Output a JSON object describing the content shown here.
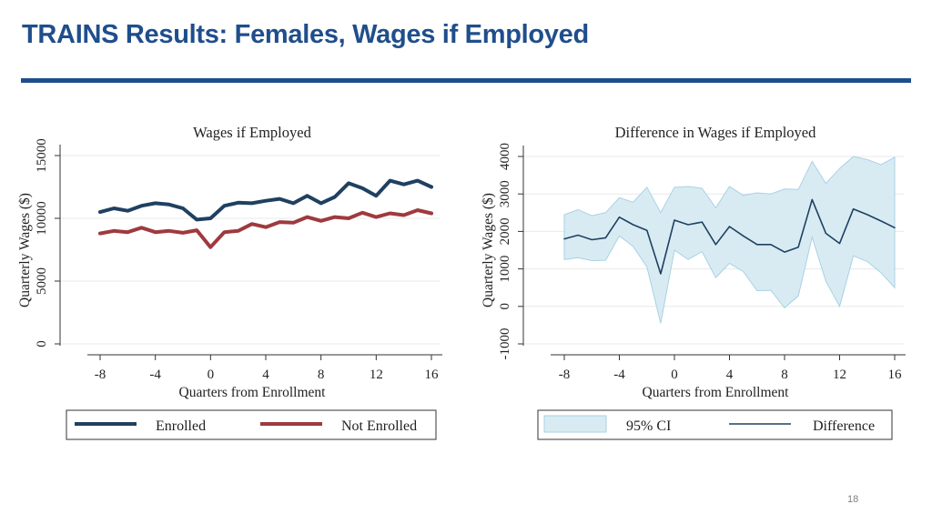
{
  "slide": {
    "title": "TRAINS Results: Females, Wages if Employed",
    "page_number": "18"
  },
  "colors": {
    "title": "#1f4e8c",
    "enrolled": "#1f4060",
    "not_enrolled": "#9e3a3f",
    "ci_fill": "#d8ebf3",
    "ci_stroke": "#a9d1e3",
    "difference": "#1f4060",
    "grid": "#e8e8e8"
  },
  "chart_data": [
    {
      "type": "line",
      "title": "Wages if Employed",
      "xlabel": "Quarters from Enrollment",
      "ylabel": "Quarterly Wages ($)",
      "xlim": [
        -8,
        16
      ],
      "ylim": [
        0,
        15000
      ],
      "xticks": [
        -8,
        -4,
        0,
        4,
        8,
        12,
        16
      ],
      "yticks": [
        0,
        5000,
        10000,
        15000
      ],
      "grid": true,
      "legend_position": "bottom",
      "x": [
        -8,
        -7,
        -6,
        -5,
        -4,
        -3,
        -2,
        -1,
        0,
        1,
        2,
        3,
        4,
        5,
        6,
        7,
        8,
        9,
        10,
        11,
        12,
        13,
        14,
        15,
        16
      ],
      "series": [
        {
          "name": "Enrolled",
          "values": [
            10500,
            10800,
            10600,
            11000,
            11200,
            11100,
            10800,
            9900,
            10000,
            11000,
            11250,
            11200,
            11400,
            11550,
            11200,
            11800,
            11200,
            11700,
            12800,
            12400,
            11800,
            13000,
            12700,
            13000,
            12500
          ]
        },
        {
          "name": "Not Enrolled",
          "values": [
            8800,
            9000,
            8900,
            9250,
            8900,
            9000,
            8850,
            9050,
            7700,
            8900,
            9000,
            9550,
            9300,
            9700,
            9650,
            10100,
            9800,
            10100,
            10000,
            10450,
            10100,
            10400,
            10250,
            10650,
            10400
          ]
        }
      ]
    },
    {
      "type": "area",
      "title": "Difference in Wages if Employed",
      "xlabel": "Quarters from Enrollment",
      "ylabel": "Quarterly Wages ($)",
      "xlim": [
        -8,
        16
      ],
      "ylim": [
        -1000,
        4000
      ],
      "xticks": [
        -8,
        -4,
        0,
        4,
        8,
        12,
        16
      ],
      "yticks": [
        -1000,
        0,
        1000,
        2000,
        3000,
        4000
      ],
      "grid": true,
      "legend_position": "bottom",
      "x": [
        -8,
        -7,
        -6,
        -5,
        -4,
        -3,
        -2,
        -1,
        0,
        1,
        2,
        3,
        4,
        5,
        6,
        7,
        8,
        9,
        10,
        11,
        12,
        13,
        14,
        15,
        16
      ],
      "series": [
        {
          "name": "Difference",
          "values": [
            1800,
            1900,
            1780,
            1830,
            2380,
            2180,
            2030,
            870,
            2300,
            2180,
            2250,
            1650,
            2130,
            1880,
            1650,
            1650,
            1450,
            1580,
            2850,
            1950,
            1680,
            2600,
            2450,
            2280,
            2100
          ]
        }
      ],
      "ci": {
        "name": "95% CI",
        "lower": [
          1250,
          1300,
          1220,
          1230,
          1880,
          1600,
          1050,
          -450,
          1500,
          1250,
          1460,
          770,
          1150,
          930,
          420,
          430,
          -40,
          280,
          1850,
          670,
          0,
          1350,
          1200,
          900,
          500
        ],
        "upper": [
          2450,
          2580,
          2420,
          2500,
          2900,
          2780,
          3180,
          2500,
          3180,
          3200,
          3150,
          2630,
          3200,
          2960,
          3030,
          3000,
          3130,
          3120,
          3870,
          3280,
          3680,
          4000,
          3920,
          3780,
          3980
        ]
      }
    }
  ],
  "legends": [
    {
      "items": [
        "Enrolled",
        "Not Enrolled"
      ]
    },
    {
      "items": [
        "95% CI",
        "Difference"
      ]
    }
  ]
}
